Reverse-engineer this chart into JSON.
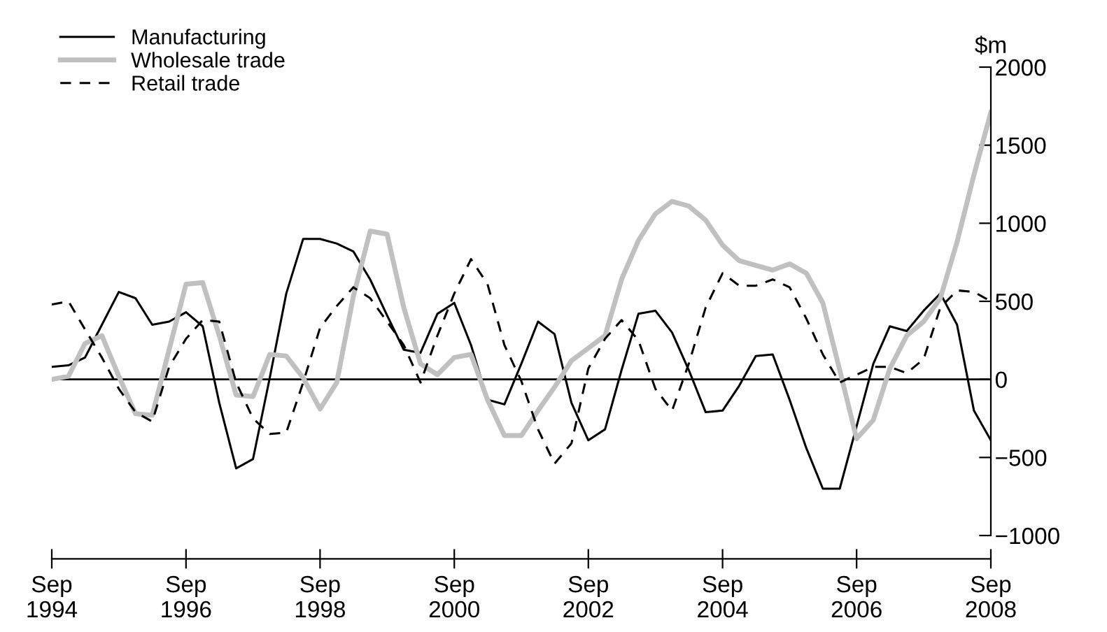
{
  "chart_data": {
    "type": "line",
    "ylabel": "$m",
    "x": [
      "1994-09",
      "1994-12",
      "1995-03",
      "1995-06",
      "1995-09",
      "1995-12",
      "1996-03",
      "1996-06",
      "1996-09",
      "1996-12",
      "1997-03",
      "1997-06",
      "1997-09",
      "1997-12",
      "1998-03",
      "1998-06",
      "1998-09",
      "1998-12",
      "1999-03",
      "1999-06",
      "1999-09",
      "1999-12",
      "2000-03",
      "2000-06",
      "2000-09",
      "2000-12",
      "2001-03",
      "2001-06",
      "2001-09",
      "2001-12",
      "2002-03",
      "2002-06",
      "2002-09",
      "2002-12",
      "2003-03",
      "2003-06",
      "2003-09",
      "2003-12",
      "2004-03",
      "2004-06",
      "2004-09",
      "2004-12",
      "2005-03",
      "2005-06",
      "2005-09",
      "2005-12",
      "2006-03",
      "2006-06",
      "2006-09",
      "2006-12",
      "2007-03",
      "2007-06",
      "2007-09",
      "2007-12",
      "2008-03",
      "2008-06",
      "2008-09"
    ],
    "series": [
      {
        "name": "Manufacturing",
        "color": "#000000",
        "line_style": "solid",
        "values": [
          80,
          90,
          140,
          350,
          560,
          520,
          350,
          370,
          430,
          340,
          -150,
          -570,
          -510,
          10,
          550,
          900,
          900,
          870,
          820,
          640,
          410,
          190,
          170,
          420,
          490,
          220,
          -130,
          -160,
          100,
          370,
          290,
          -150,
          -390,
          -320,
          60,
          420,
          440,
          300,
          60,
          -210,
          -200,
          -40,
          150,
          160,
          -130,
          -440,
          -700,
          -700,
          -300,
          100,
          340,
          310,
          440,
          550,
          350,
          -200,
          -390
        ]
      },
      {
        "name": "Wholesale trade",
        "color": "#c0c0c0",
        "line_style": "solid",
        "values": [
          0,
          20,
          230,
          280,
          20,
          -220,
          -230,
          190,
          610,
          620,
          280,
          -100,
          -110,
          160,
          150,
          10,
          -190,
          -20,
          530,
          950,
          930,
          460,
          100,
          30,
          140,
          160,
          -130,
          -360,
          -360,
          -200,
          -50,
          120,
          200,
          280,
          640,
          890,
          1060,
          1140,
          1110,
          1020,
          860,
          760,
          730,
          700,
          740,
          680,
          490,
          60,
          -380,
          -260,
          70,
          280,
          370,
          520,
          880,
          1310,
          1710
        ]
      },
      {
        "name": "Retail trade",
        "color": "#000000",
        "line_style": "dashed",
        "values": [
          480,
          500,
          320,
          140,
          -60,
          -210,
          -270,
          80,
          260,
          380,
          370,
          -20,
          -250,
          -350,
          -340,
          -20,
          330,
          470,
          590,
          520,
          370,
          220,
          -20,
          280,
          550,
          770,
          610,
          220,
          -10,
          -320,
          -540,
          -410,
          70,
          260,
          380,
          250,
          -60,
          -200,
          100,
          460,
          680,
          600,
          600,
          640,
          590,
          390,
          160,
          -20,
          30,
          80,
          80,
          40,
          130,
          460,
          570,
          560,
          500
        ]
      }
    ],
    "xlim": [
      "1994-09",
      "2008-09"
    ],
    "xticks": [
      {
        "value": "1994-09",
        "label": "Sep\n1994"
      },
      {
        "value": "1996-09",
        "label": "Sep\n1996"
      },
      {
        "value": "1998-09",
        "label": "Sep\n1998"
      },
      {
        "value": "2000-09",
        "label": "Sep\n2000"
      },
      {
        "value": "2002-09",
        "label": "Sep\n2002"
      },
      {
        "value": "2004-09",
        "label": "Sep\n2004"
      },
      {
        "value": "2006-09",
        "label": "Sep\n2006"
      },
      {
        "value": "2008-09",
        "label": "Sep\n2008"
      }
    ],
    "ylim": [
      -1000,
      2000
    ],
    "yticks": [
      -1000,
      -500,
      0,
      500,
      1000,
      1500,
      2000
    ],
    "ref_lines": [
      {
        "axis": "y",
        "value": 0,
        "color": "#000000"
      }
    ],
    "grid": false,
    "legend": "top left",
    "marker": "none"
  }
}
